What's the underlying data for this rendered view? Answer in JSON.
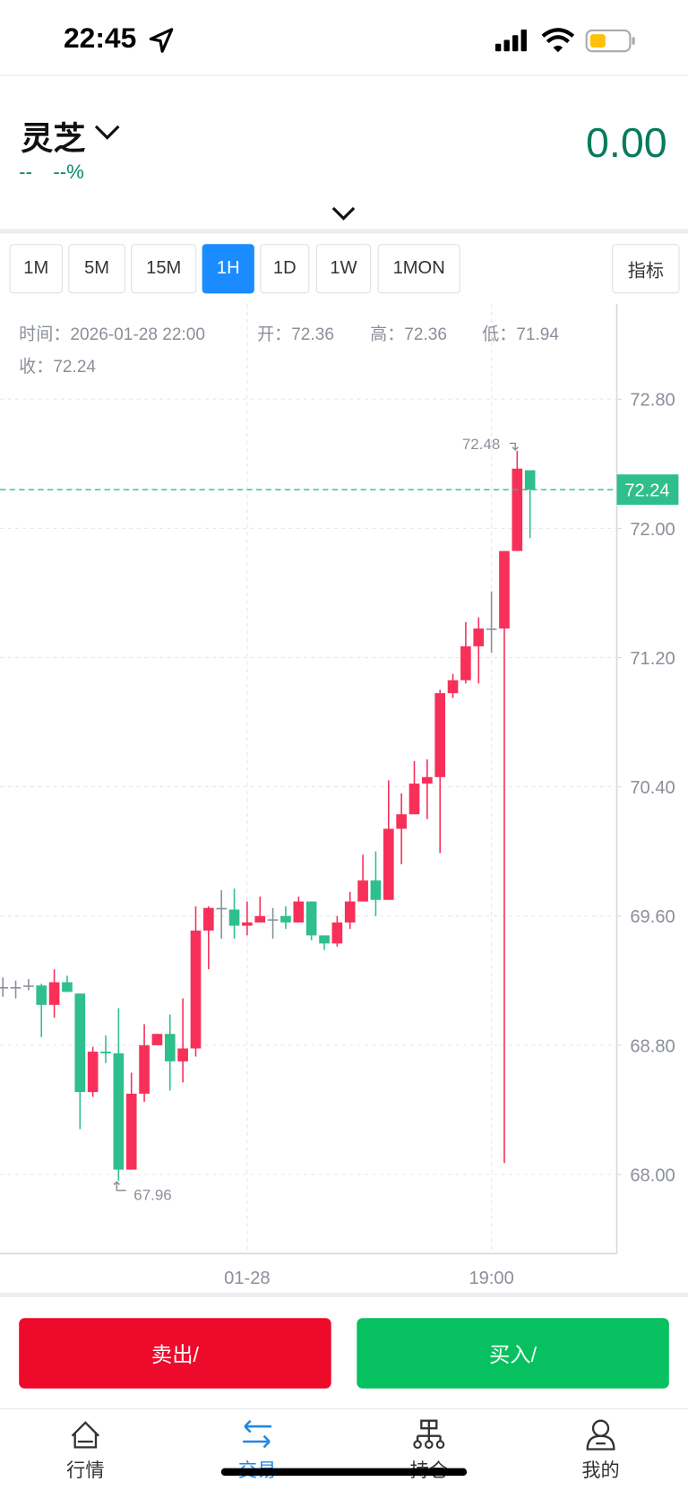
{
  "status_bar": {
    "time": "22:45"
  },
  "header": {
    "name": "灵芝",
    "change": "--",
    "change_pct": "--%",
    "price": "0.00"
  },
  "tabs": [
    "1M",
    "5M",
    "15M",
    "1H",
    "1D",
    "1W",
    "1MON"
  ],
  "active_tab": "1H",
  "indicator_button": "指标",
  "info": [
    "时间：2026-01-28 22:00",
    "开：72.36",
    "高：72.36",
    "低：71.94",
    "收：72.24"
  ],
  "chart_data": {
    "type": "candlestick",
    "categories": [
      null,
      null,
      null,
      null,
      null,
      null,
      null,
      null,
      null,
      null,
      null,
      null,
      null,
      null,
      null,
      null,
      null,
      null,
      null,
      "01-28",
      null,
      null,
      null,
      null,
      null,
      null,
      null,
      null,
      null,
      null,
      null,
      null,
      null,
      null,
      null,
      null,
      null,
      null,
      "19:00",
      null,
      null,
      null
    ],
    "open": [
      69.16,
      69.16,
      69.17,
      69.17,
      69.05,
      69.19,
      69.12,
      68.51,
      68.76,
      68.75,
      68.03,
      68.5,
      68.8,
      68.87,
      68.7,
      68.78,
      69.51,
      69.65,
      69.64,
      69.54,
      69.56,
      69.58,
      69.6,
      69.56,
      69.69,
      69.48,
      69.43,
      69.56,
      69.69,
      69.82,
      69.7,
      70.14,
      70.23,
      70.42,
      70.46,
      70.98,
      71.06,
      71.27,
      71.38,
      71.38,
      71.86,
      72.36
    ],
    "high": [
      69.22,
      69.2,
      69.21,
      69.18,
      69.27,
      69.23,
      69.12,
      68.79,
      68.86,
      69.03,
      68.63,
      68.93,
      68.87,
      68.99,
      69.09,
      69.66,
      69.66,
      69.76,
      69.77,
      69.69,
      69.72,
      69.65,
      69.66,
      69.72,
      69.69,
      69.48,
      69.6,
      69.75,
      69.98,
      70.0,
      70.44,
      70.36,
      70.56,
      70.57,
      71.0,
      71.1,
      71.42,
      71.45,
      71.61,
      71.86,
      72.48,
      72.36
    ],
    "low": [
      69.1,
      69.09,
      69.14,
      68.85,
      68.97,
      69.13,
      68.28,
      68.48,
      68.69,
      67.96,
      68.03,
      68.45,
      68.8,
      68.52,
      68.57,
      68.73,
      69.27,
      69.46,
      69.46,
      69.48,
      69.56,
      69.46,
      69.52,
      69.56,
      69.45,
      69.39,
      69.41,
      69.52,
      69.69,
      69.6,
      69.7,
      69.92,
      70.23,
      70.2,
      69.99,
      70.95,
      71.04,
      71.04,
      71.23,
      68.07,
      71.86,
      71.94
    ],
    "close": [
      69.16,
      69.16,
      69.17,
      69.05,
      69.19,
      69.13,
      68.51,
      68.76,
      68.75,
      68.03,
      68.5,
      68.8,
      68.87,
      68.7,
      68.78,
      69.51,
      69.65,
      69.65,
      69.54,
      69.56,
      69.6,
      69.58,
      69.56,
      69.69,
      69.48,
      69.43,
      69.56,
      69.69,
      69.82,
      69.7,
      70.14,
      70.23,
      70.42,
      70.46,
      70.98,
      71.06,
      71.27,
      71.38,
      71.38,
      71.86,
      72.37,
      72.24
    ],
    "up_color": "#f7305a",
    "down_color": "#2fbf8c",
    "flat_color": "#8a8f99",
    "ylim": [
      67.51,
      73.39
    ],
    "yticks": [
      {
        "value": 68.0,
        "label": "68.00"
      },
      {
        "value": 68.8,
        "label": "68.80"
      },
      {
        "value": 69.6,
        "label": "69.60"
      },
      {
        "value": 70.4,
        "label": "70.40"
      },
      {
        "value": 71.2,
        "label": "71.20"
      },
      {
        "value": 72.0,
        "label": "72.00"
      },
      {
        "value": 72.8,
        "label": "72.80"
      }
    ],
    "grid": true,
    "last_price": {
      "value": 72.24,
      "label": "72.24"
    },
    "annotations": [
      {
        "value": 72.48,
        "label": "72.48",
        "index": 40
      },
      {
        "value": 67.96,
        "label": "67.96",
        "index": 9
      }
    ]
  },
  "buttons": {
    "sell": "卖出/",
    "buy": "买入/"
  },
  "nav": [
    "行情",
    "交易",
    "持仓",
    "我的"
  ]
}
